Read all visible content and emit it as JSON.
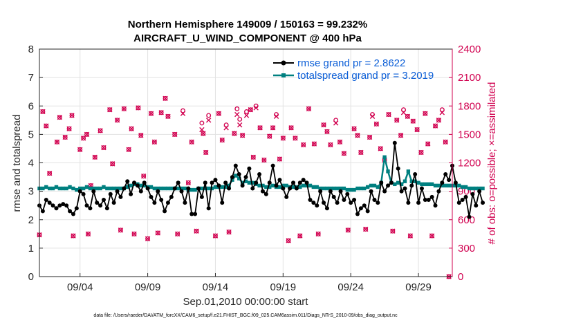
{
  "chart_data": {
    "type": "line",
    "title_line1": "Northern Hemisphere 149009 / 150163 = 99.232%",
    "title_line2": "AIRCRAFT_U_WIND_COMPONENT @ 400 hPa",
    "xlabel": "Sep.01,2010 00:00:00 start",
    "ylabel_left": "rmse and totalspread",
    "ylabel_right": "# of obs: o=possible; ×=assimilated",
    "footer": "data file: /Users/raeder/DAI/ATM_forcXX/CAM6_setup/f.e21.FHIST_BGC.f09_025.CAM6assim.011/Diags_NTrS_2010-09/obs_diag_output.nc",
    "xlim": [
      1,
      31.5
    ],
    "ylim_left": [
      0,
      8
    ],
    "ylim_right": [
      0,
      2400
    ],
    "x_ticks": [
      {
        "x": 4,
        "label": "09/04"
      },
      {
        "x": 9,
        "label": "09/09"
      },
      {
        "x": 14,
        "label": "09/14"
      },
      {
        "x": 19,
        "label": "09/19"
      },
      {
        "x": 24,
        "label": "09/24"
      },
      {
        "x": 29,
        "label": "09/29"
      }
    ],
    "y_ticks_left": [
      "0",
      "1",
      "2",
      "3",
      "4",
      "5",
      "6",
      "7",
      "8"
    ],
    "y_ticks_right": [
      "0",
      "300",
      "600",
      "900",
      "1200",
      "1500",
      "1800",
      "2100",
      "2400"
    ],
    "colors": {
      "rmse": "#000000",
      "spread": "#008080",
      "obs": "#d1004f",
      "grid": "#e2e2e2"
    },
    "series": [
      {
        "name": "rmse grand pr = 2.8622",
        "marker": "dot",
        "x_start": 1.0,
        "x_step": 0.25,
        "values": [
          2.5,
          2.3,
          2.7,
          2.6,
          2.5,
          2.4,
          2.5,
          2.55,
          2.5,
          2.3,
          2.2,
          2.4,
          3.0,
          2.9,
          2.5,
          2.4,
          3.0,
          2.6,
          2.5,
          2.7,
          2.4,
          2.9,
          2.6,
          3.0,
          2.8,
          3.1,
          3.35,
          2.9,
          3.3,
          3.2,
          3.0,
          3.3,
          3.1,
          2.8,
          2.6,
          3.0,
          2.7,
          2.3,
          2.6,
          2.8,
          3.1,
          3.3,
          3.0,
          2.6,
          3.1,
          2.2,
          2.2,
          3.1,
          2.8,
          3.3,
          2.4,
          3.3,
          3.4,
          3.2,
          2.6,
          3.3,
          3.1,
          3.5,
          3.9,
          3.6,
          3.2,
          3.5,
          3.8,
          3.1,
          3.3,
          3.6,
          3.0,
          2.9,
          3.3,
          3.9,
          3.2,
          3.4,
          3.1,
          2.8,
          3.1,
          3.3,
          3.1,
          3.3,
          3.4,
          3.3,
          2.7,
          2.6,
          2.5,
          3.0,
          2.6,
          2.4,
          3.0,
          2.8,
          2.6,
          3.0,
          2.7,
          2.9,
          2.6,
          2.7,
          2.2,
          2.4,
          2.5,
          2.3,
          3.0,
          2.7,
          2.6,
          3.3,
          3.0,
          3.2,
          3.3,
          4.7,
          3.8,
          3.0,
          3.1,
          2.6,
          3.2,
          3.6,
          2.6,
          3.1,
          2.7,
          2.7,
          2.8,
          2.5,
          3.0,
          3.3,
          3.6,
          3.4,
          3.9,
          3.3,
          2.6,
          2.7,
          2.8,
          2.1,
          2.9,
          2.5,
          3.0,
          2.6
        ]
      },
      {
        "name": "totalspread grand pr = 3.2019",
        "marker": "square",
        "x_start": 1.0,
        "x_step": 0.25,
        "values": [
          3.1,
          3.1,
          3.15,
          3.1,
          3.1,
          3.15,
          3.1,
          3.1,
          3.1,
          3.15,
          3.1,
          3.05,
          3.1,
          3.1,
          3.15,
          3.1,
          3.1,
          3.1,
          3.1,
          3.15,
          3.1,
          3.1,
          3.1,
          3.1,
          3.1,
          3.1,
          3.15,
          3.2,
          3.25,
          3.25,
          3.2,
          3.2,
          3.15,
          3.15,
          3.1,
          3.1,
          3.1,
          3.1,
          3.1,
          3.1,
          3.1,
          3.1,
          3.1,
          3.1,
          3.05,
          3.05,
          3.05,
          3.1,
          3.1,
          3.1,
          3.1,
          3.1,
          3.15,
          3.15,
          3.15,
          3.15,
          3.2,
          3.4,
          3.55,
          3.45,
          3.3,
          3.35,
          3.3,
          3.3,
          3.25,
          3.2,
          3.2,
          3.15,
          3.15,
          3.2,
          3.15,
          3.15,
          3.2,
          3.2,
          3.15,
          3.15,
          3.15,
          3.15,
          3.2,
          3.2,
          3.2,
          3.15,
          3.15,
          3.1,
          3.1,
          3.1,
          3.1,
          3.1,
          3.1,
          3.1,
          3.1,
          3.05,
          3.05,
          3.05,
          3.1,
          3.1,
          3.1,
          3.15,
          3.2,
          3.2,
          3.15,
          3.3,
          4.2,
          3.7,
          3.3,
          3.25,
          3.3,
          3.25,
          3.35,
          3.7,
          3.35,
          3.35,
          3.3,
          3.25,
          3.25,
          3.25,
          3.25,
          3.2,
          3.2,
          3.2,
          3.2,
          3.2,
          3.2,
          3.2,
          3.2,
          3.15,
          3.15,
          3.1,
          3.1,
          3.1,
          3.1,
          3.1
        ]
      }
    ],
    "obs_possible": [
      [
        1.0,
        440
      ],
      [
        1.25,
        1740
      ],
      [
        1.5,
        1590
      ],
      [
        1.75,
        1090
      ],
      [
        2.3,
        1420
      ],
      [
        2.5,
        1680
      ],
      [
        2.9,
        1470
      ],
      [
        3.2,
        1560
      ],
      [
        3.4,
        1700
      ],
      [
        3.5,
        430
      ],
      [
        4.0,
        1340
      ],
      [
        4.25,
        1460
      ],
      [
        4.5,
        1500
      ],
      [
        4.6,
        450
      ],
      [
        4.8,
        960
      ],
      [
        5.1,
        1260
      ],
      [
        5.5,
        1540
      ],
      [
        5.75,
        1360
      ],
      [
        6.2,
        1760
      ],
      [
        6.4,
        1190
      ],
      [
        6.75,
        1650
      ],
      [
        7.0,
        490
      ],
      [
        7.25,
        1770
      ],
      [
        7.6,
        1340
      ],
      [
        7.8,
        1560
      ],
      [
        8.0,
        450
      ],
      [
        8.3,
        1780
      ],
      [
        8.5,
        1490
      ],
      [
        8.7,
        1060
      ],
      [
        9.0,
        400
      ],
      [
        9.25,
        1720
      ],
      [
        9.5,
        1420
      ],
      [
        9.75,
        460
      ],
      [
        10.0,
        1730
      ],
      [
        10.3,
        1880
      ],
      [
        10.5,
        1690
      ],
      [
        11.0,
        1500
      ],
      [
        11.2,
        450
      ],
      [
        11.6,
        1750
      ],
      [
        12.0,
        990
      ],
      [
        12.25,
        1420
      ],
      [
        12.6,
        480
      ],
      [
        13.0,
        1620
      ],
      [
        13.1,
        1510
      ],
      [
        13.3,
        1310
      ],
      [
        13.5,
        1700
      ],
      [
        14.0,
        430
      ],
      [
        14.25,
        1720
      ],
      [
        14.5,
        1440
      ],
      [
        14.8,
        1600
      ],
      [
        15.0,
        470
      ],
      [
        15.4,
        1510
      ],
      [
        15.6,
        1770
      ],
      [
        15.8,
        1660
      ],
      [
        16.0,
        1490
      ],
      [
        16.3,
        1740
      ],
      [
        16.6,
        1760
      ],
      [
        16.8,
        1260
      ],
      [
        17.0,
        1800
      ],
      [
        17.3,
        1570
      ],
      [
        17.6,
        1230
      ],
      [
        18.0,
        1480
      ],
      [
        18.25,
        1570
      ],
      [
        18.5,
        1710
      ],
      [
        18.75,
        1240
      ],
      [
        19.0,
        1460
      ],
      [
        19.4,
        380
      ],
      [
        19.6,
        1570
      ],
      [
        19.9,
        1460
      ],
      [
        20.25,
        430
      ],
      [
        20.5,
        1390
      ],
      [
        20.9,
        1770
      ],
      [
        21.3,
        1400
      ],
      [
        21.6,
        450
      ],
      [
        22.0,
        1600
      ],
      [
        22.25,
        1530
      ],
      [
        22.5,
        1390
      ],
      [
        22.9,
        1650
      ],
      [
        23.2,
        1420
      ],
      [
        23.5,
        1300
      ],
      [
        23.8,
        490
      ],
      [
        24.25,
        1560
      ],
      [
        24.5,
        1490
      ],
      [
        24.75,
        1310
      ],
      [
        25.1,
        500
      ],
      [
        25.4,
        1470
      ],
      [
        25.6,
        1710
      ],
      [
        25.9,
        1610
      ],
      [
        26.2,
        1350
      ],
      [
        26.5,
        1230
      ],
      [
        26.8,
        1710
      ],
      [
        27.1,
        480
      ],
      [
        27.4,
        1650
      ],
      [
        27.7,
        1490
      ],
      [
        27.9,
        1760
      ],
      [
        28.2,
        1690
      ],
      [
        28.4,
        430
      ],
      [
        28.6,
        1640
      ],
      [
        28.9,
        1550
      ],
      [
        29.2,
        1310
      ],
      [
        29.5,
        1720
      ],
      [
        29.7,
        1400
      ],
      [
        30.0,
        430
      ],
      [
        30.25,
        1590
      ],
      [
        30.5,
        1650
      ],
      [
        30.75,
        1760
      ],
      [
        31.0,
        1420
      ],
      [
        31.25,
        0
      ]
    ],
    "obs_assimilated": [
      [
        1.0,
        440
      ],
      [
        1.25,
        1740
      ],
      [
        1.5,
        1590
      ],
      [
        1.75,
        1090
      ],
      [
        2.3,
        1420
      ],
      [
        2.5,
        1680
      ],
      [
        2.9,
        1470
      ],
      [
        3.2,
        1560
      ],
      [
        3.4,
        1700
      ],
      [
        3.5,
        430
      ],
      [
        4.0,
        1340
      ],
      [
        4.25,
        1460
      ],
      [
        4.5,
        1500
      ],
      [
        4.6,
        450
      ],
      [
        4.8,
        960
      ],
      [
        5.1,
        1260
      ],
      [
        5.5,
        1540
      ],
      [
        5.75,
        1360
      ],
      [
        6.2,
        1760
      ],
      [
        6.4,
        1190
      ],
      [
        6.75,
        1650
      ],
      [
        7.0,
        490
      ],
      [
        7.25,
        1770
      ],
      [
        7.6,
        1340
      ],
      [
        7.8,
        1560
      ],
      [
        8.0,
        450
      ],
      [
        8.3,
        1780
      ],
      [
        8.5,
        1490
      ],
      [
        8.7,
        1060
      ],
      [
        9.0,
        400
      ],
      [
        9.25,
        1720
      ],
      [
        9.5,
        1420
      ],
      [
        9.75,
        460
      ],
      [
        10.0,
        1730
      ],
      [
        10.3,
        1880
      ],
      [
        10.5,
        1690
      ],
      [
        11.0,
        1500
      ],
      [
        11.2,
        450
      ],
      [
        11.6,
        1720
      ],
      [
        12.0,
        990
      ],
      [
        12.25,
        1420
      ],
      [
        12.6,
        480
      ],
      [
        13.0,
        1550
      ],
      [
        13.1,
        1510
      ],
      [
        13.3,
        1310
      ],
      [
        13.5,
        1650
      ],
      [
        14.0,
        430
      ],
      [
        14.25,
        1720
      ],
      [
        14.5,
        1440
      ],
      [
        14.8,
        1570
      ],
      [
        15.0,
        470
      ],
      [
        15.4,
        1510
      ],
      [
        15.6,
        1710
      ],
      [
        15.8,
        1600
      ],
      [
        16.0,
        1490
      ],
      [
        16.3,
        1700
      ],
      [
        16.6,
        1760
      ],
      [
        16.8,
        1260
      ],
      [
        17.0,
        1780
      ],
      [
        17.3,
        1570
      ],
      [
        17.6,
        1230
      ],
      [
        18.0,
        1480
      ],
      [
        18.25,
        1570
      ],
      [
        18.5,
        1690
      ],
      [
        18.75,
        1240
      ],
      [
        19.0,
        1460
      ],
      [
        19.4,
        380
      ],
      [
        19.6,
        1570
      ],
      [
        19.9,
        1460
      ],
      [
        20.25,
        430
      ],
      [
        20.5,
        1390
      ],
      [
        20.9,
        1770
      ],
      [
        21.3,
        1400
      ],
      [
        21.6,
        450
      ],
      [
        22.0,
        1600
      ],
      [
        22.25,
        1530
      ],
      [
        22.5,
        1390
      ],
      [
        22.9,
        1620
      ],
      [
        23.2,
        1420
      ],
      [
        23.5,
        1300
      ],
      [
        23.8,
        490
      ],
      [
        24.25,
        1560
      ],
      [
        24.5,
        1490
      ],
      [
        24.75,
        1310
      ],
      [
        25.1,
        500
      ],
      [
        25.4,
        1470
      ],
      [
        25.6,
        1690
      ],
      [
        25.9,
        1610
      ],
      [
        26.2,
        1350
      ],
      [
        26.5,
        1230
      ],
      [
        26.8,
        1710
      ],
      [
        27.1,
        480
      ],
      [
        27.4,
        1650
      ],
      [
        27.7,
        1490
      ],
      [
        27.9,
        1730
      ],
      [
        28.2,
        1690
      ],
      [
        28.4,
        430
      ],
      [
        28.6,
        1640
      ],
      [
        28.9,
        1550
      ],
      [
        29.2,
        1310
      ],
      [
        29.5,
        1720
      ],
      [
        29.7,
        1400
      ],
      [
        30.0,
        430
      ],
      [
        30.25,
        1590
      ],
      [
        30.5,
        1650
      ],
      [
        30.75,
        1730
      ],
      [
        31.0,
        1420
      ],
      [
        31.25,
        0
      ]
    ]
  }
}
